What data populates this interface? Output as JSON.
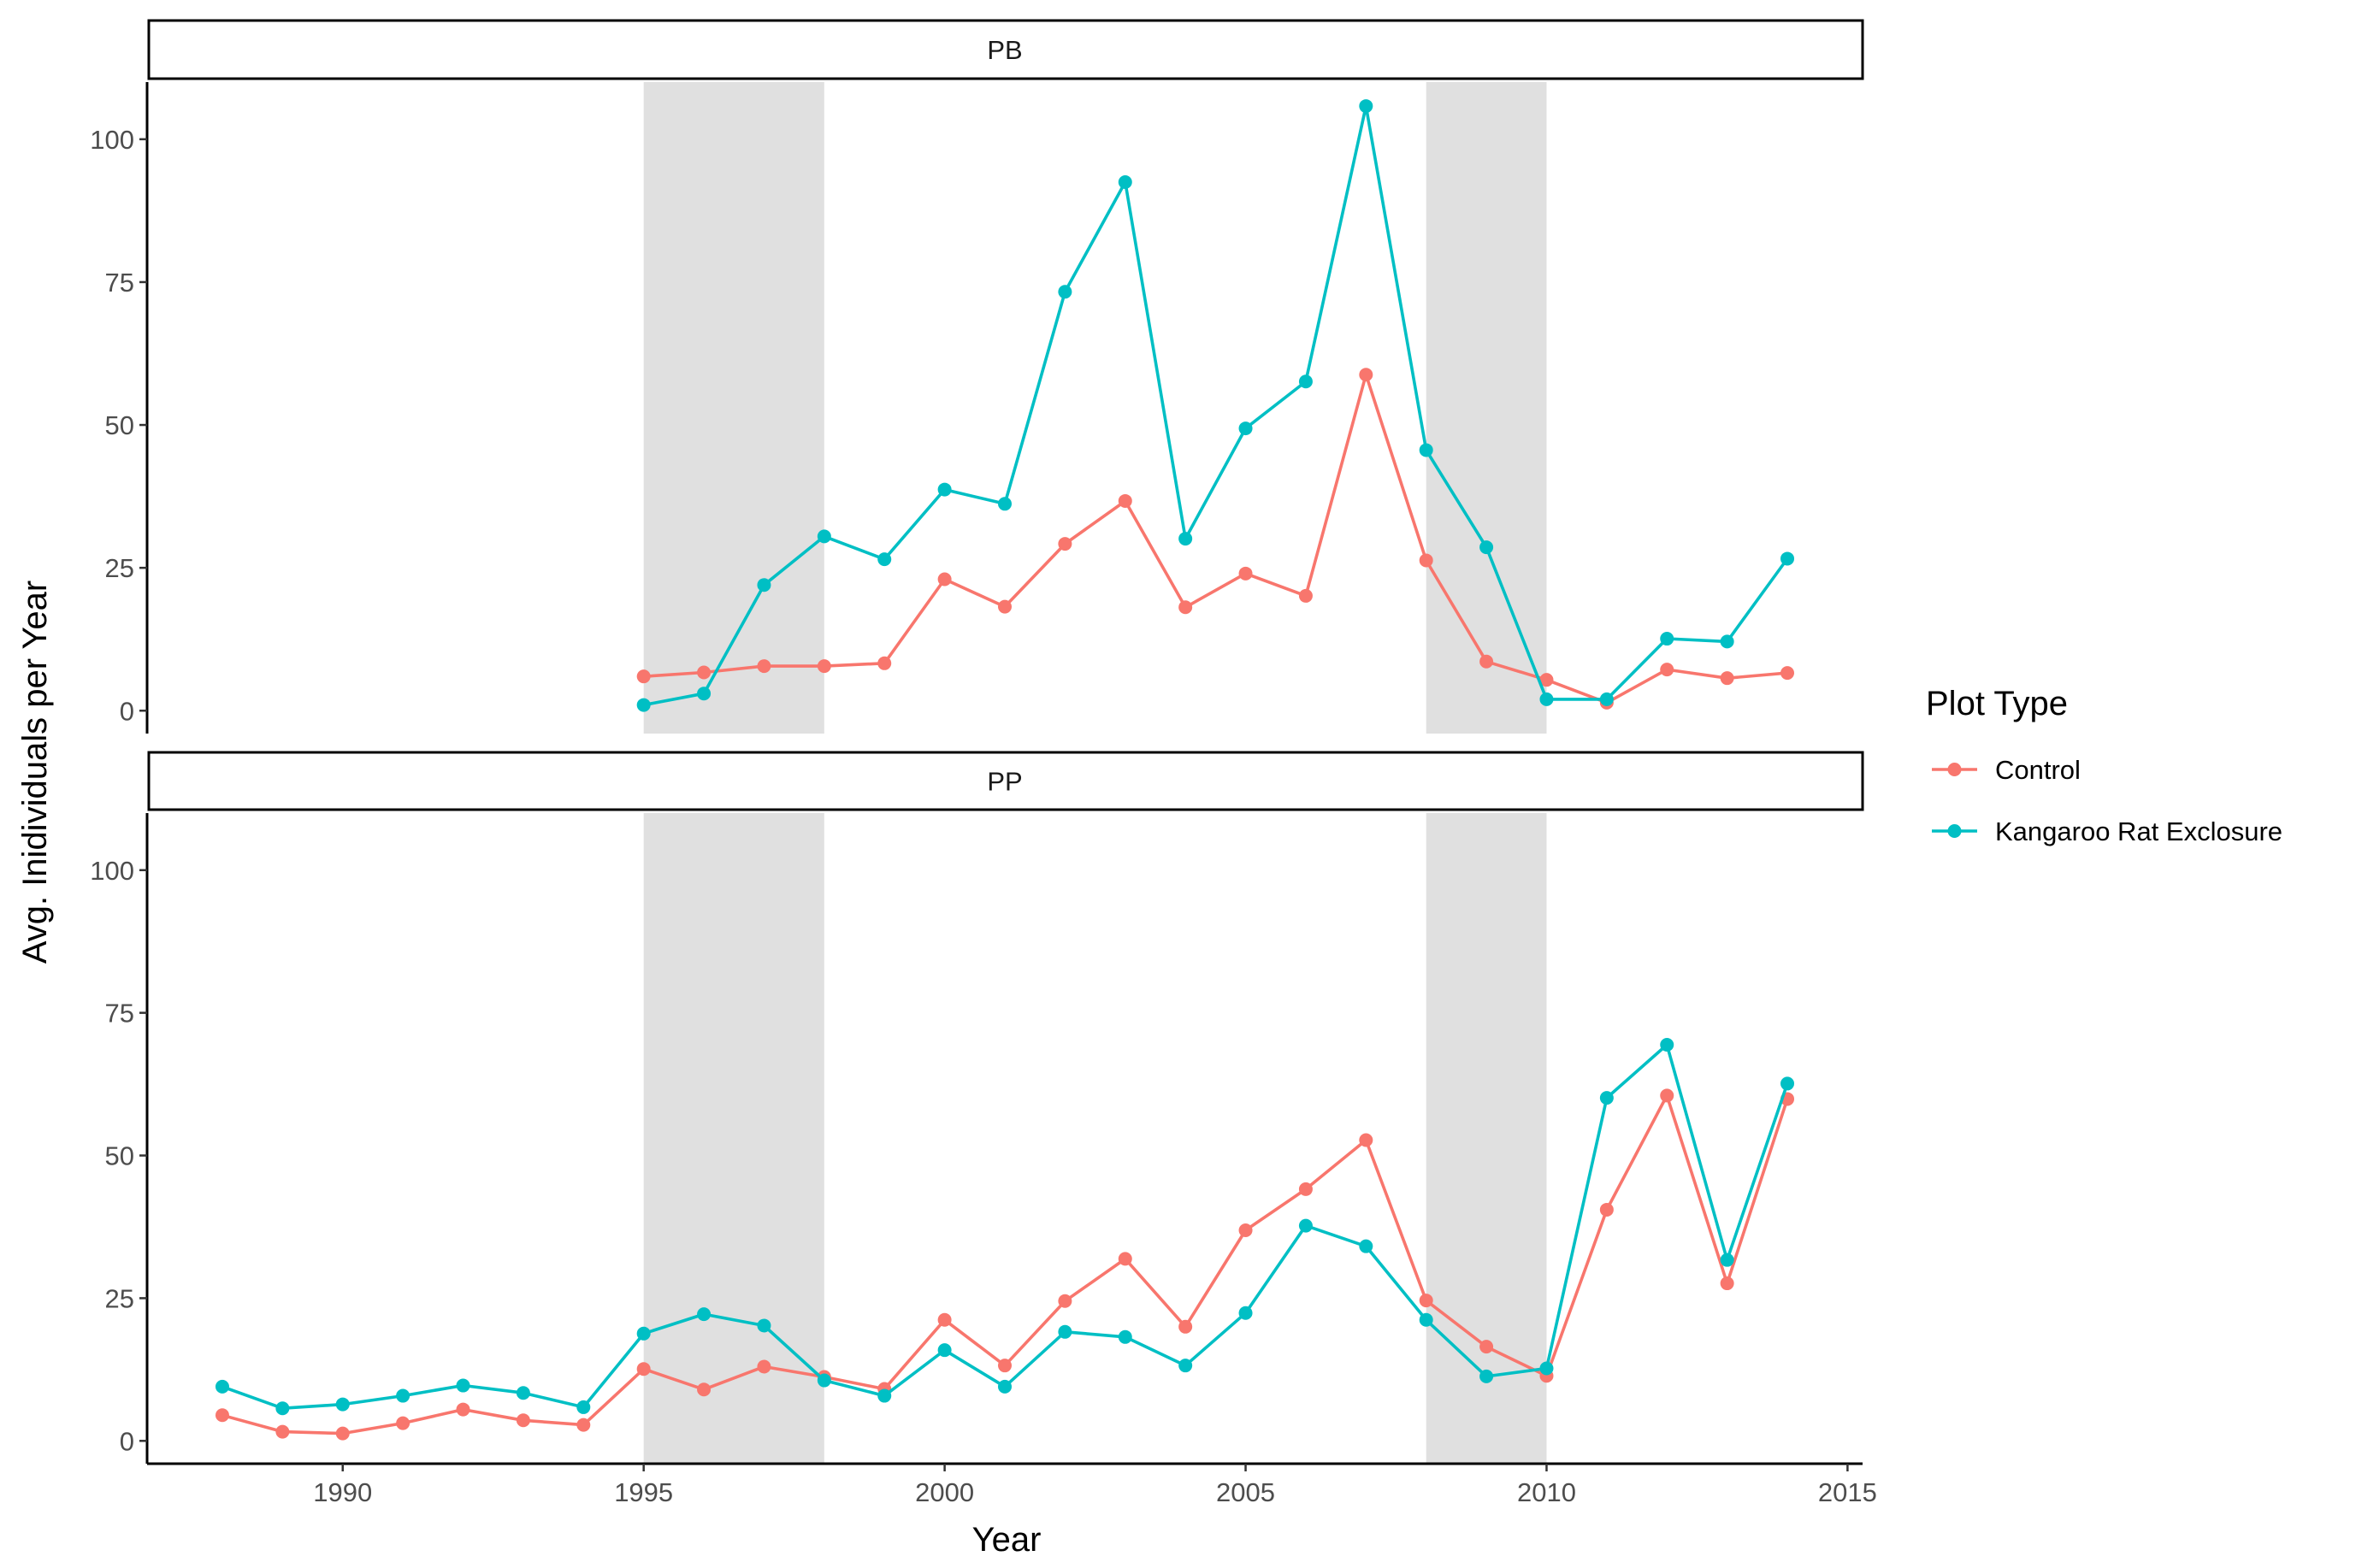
{
  "chart_data": {
    "type": "line",
    "xlabel": "Year",
    "ylabel": "Avg. Inidividuals per Year",
    "xlim": [
      1986.75,
      2015.25
    ],
    "ylim": [
      -4,
      110
    ],
    "x_ticks": [
      1990,
      1995,
      2000,
      2005,
      2010,
      2015
    ],
    "y_ticks": [
      0,
      25,
      50,
      75,
      100
    ],
    "grid": false,
    "shaded_periods": [
      [
        1995,
        1998
      ],
      [
        2008,
        2010
      ]
    ],
    "shade_color": "#e0e0e0",
    "legend": {
      "title": "Plot Type",
      "position": "right",
      "entries": [
        "Control",
        "Kangaroo Rat Exclosure"
      ]
    },
    "panels": [
      {
        "name": "PB",
        "series": [
          {
            "name": "Control",
            "color": "#f8766d",
            "points": [
              [
                1995,
                6
              ],
              [
                1996,
                6.7
              ],
              [
                1997,
                7.8
              ],
              [
                1998,
                7.8
              ],
              [
                1999,
                8.3
              ],
              [
                2000,
                23
              ],
              [
                2001,
                18.2
              ],
              [
                2002,
                29.2
              ],
              [
                2003,
                36.7
              ],
              [
                2004,
                18.1
              ],
              [
                2005,
                24
              ],
              [
                2006,
                20.1
              ],
              [
                2007,
                58.8
              ],
              [
                2008,
                26.3
              ],
              [
                2009,
                8.6
              ],
              [
                2010,
                5.4
              ],
              [
                2011,
                1.4
              ],
              [
                2012,
                7.2
              ],
              [
                2013,
                5.7
              ],
              [
                2014,
                6.6
              ]
            ]
          },
          {
            "name": "Kangaroo Rat Exclosure",
            "color": "#00bfc4",
            "points": [
              [
                1995,
                1
              ],
              [
                1996,
                3
              ],
              [
                1997,
                22
              ],
              [
                1998,
                30.5
              ],
              [
                1999,
                26.5
              ],
              [
                2000,
                38.7
              ],
              [
                2001,
                36.2
              ],
              [
                2002,
                73.3
              ],
              [
                2003,
                92.5
              ],
              [
                2004,
                30.1
              ],
              [
                2005,
                49.4
              ],
              [
                2006,
                57.6
              ],
              [
                2007,
                105.8
              ],
              [
                2008,
                45.6
              ],
              [
                2009,
                28.6
              ],
              [
                2010,
                2
              ],
              [
                2011,
                2
              ],
              [
                2012,
                12.6
              ],
              [
                2013,
                12.1
              ],
              [
                2014,
                26.6
              ]
            ]
          }
        ]
      },
      {
        "name": "PP",
        "series": [
          {
            "name": "Control",
            "color": "#f8766d",
            "points": [
              [
                1988,
                4.5
              ],
              [
                1989,
                1.6
              ],
              [
                1990,
                1.3
              ],
              [
                1991,
                3.1
              ],
              [
                1992,
                5.5
              ],
              [
                1993,
                3.6
              ],
              [
                1994,
                2.8
              ],
              [
                1995,
                12.6
              ],
              [
                1996,
                9
              ],
              [
                1997,
                13
              ],
              [
                1998,
                11.2
              ],
              [
                1999,
                9.1
              ],
              [
                2000,
                21.2
              ],
              [
                2001,
                13.2
              ],
              [
                2002,
                24.5
              ],
              [
                2003,
                31.9
              ],
              [
                2004,
                20
              ],
              [
                2005,
                36.9
              ],
              [
                2006,
                44.1
              ],
              [
                2007,
                52.7
              ],
              [
                2008,
                24.6
              ],
              [
                2009,
                16.5
              ],
              [
                2010,
                11.4
              ],
              [
                2011,
                40.5
              ],
              [
                2012,
                60.5
              ],
              [
                2013,
                27.6
              ],
              [
                2014,
                59.9
              ]
            ]
          },
          {
            "name": "Kangaroo Rat Exclosure",
            "color": "#00bfc4",
            "points": [
              [
                1988,
                9.5
              ],
              [
                1989,
                5.7
              ],
              [
                1990,
                6.4
              ],
              [
                1991,
                7.9
              ],
              [
                1992,
                9.7
              ],
              [
                1993,
                8.4
              ],
              [
                1994,
                5.9
              ],
              [
                1995,
                18.8
              ],
              [
                1996,
                22.2
              ],
              [
                1997,
                20.2
              ],
              [
                1998,
                10.6
              ],
              [
                1999,
                7.9
              ],
              [
                2000,
                15.9
              ],
              [
                2001,
                9.5
              ],
              [
                2002,
                19.1
              ],
              [
                2003,
                18.2
              ],
              [
                2004,
                13.2
              ],
              [
                2005,
                22.4
              ],
              [
                2006,
                37.7
              ],
              [
                2007,
                34.1
              ],
              [
                2008,
                21.2
              ],
              [
                2009,
                11.3
              ],
              [
                2010,
                12.7
              ],
              [
                2011,
                60.1
              ],
              [
                2012,
                69.4
              ],
              [
                2013,
                31.7
              ],
              [
                2014,
                62.6
              ]
            ]
          }
        ]
      }
    ]
  }
}
